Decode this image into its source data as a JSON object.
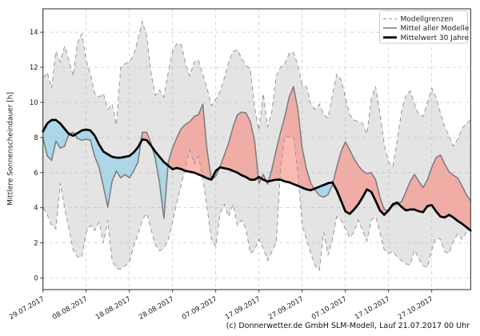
{
  "footer": "(c) Donnerwetter.de GmbH SLM-Modell, Lauf 21.07.2017 00 Uhr",
  "legend": {
    "items": [
      {
        "label": "Modellgrenzen",
        "style": "dashed-gray"
      },
      {
        "label": "Mittel aller Modelle",
        "style": "solid-gray"
      },
      {
        "label": "Mittelwert 30 Jahre",
        "style": "solid-black"
      }
    ]
  },
  "chart_data": {
    "type": "line",
    "title": "",
    "xlabel": "",
    "ylabel": "Mittlere Sonnenscheindauer [h]",
    "ylim": [
      0,
      14
    ],
    "yticks": [
      0,
      2,
      4,
      6,
      8,
      10,
      12,
      14
    ],
    "grid": "dashed both axes",
    "legend_position": "upper right",
    "x_unit": "days since 29.07.2017",
    "xtick_days": [
      0,
      10,
      20,
      30,
      40,
      50,
      60,
      70,
      80,
      90
    ],
    "xtick_labels": [
      "29.07.2017",
      "08.08.2017",
      "18.08.2017",
      "28.08.2017",
      "07.09.2017",
      "17.09.2017",
      "27.09.2017",
      "07.10.2017",
      "17.10.2017",
      "27.10.2017"
    ],
    "fill_rule": "red where Mittel aller Modelle above Mittelwert 30 Jahre, blue where below; gray band between Modellgrenzen",
    "colors": {
      "band_fill": "#e4e4e4",
      "band_edge": "#979797",
      "above_fill": "rgba(250,128,114,0.55)",
      "below_fill": "rgba(135,206,235,0.60)",
      "mean_line": "#7f7f7f",
      "clim_line": "#000000",
      "grid": "#bdbdbd",
      "text": "#1a1a1a"
    },
    "series": [
      {
        "name": "Modellgrenze oben",
        "role": "upper",
        "values": [
          11.4,
          11.7,
          10.8,
          12.9,
          12.3,
          13.2,
          12.4,
          11.5,
          13.4,
          13.9,
          12.4,
          11.6,
          10.5,
          10.3,
          10.5,
          9.6,
          9.9,
          8.7,
          12.0,
          12.2,
          12.3,
          12.7,
          13.6,
          14.6,
          13.8,
          11.7,
          10.4,
          10.7,
          10.3,
          11.7,
          12.9,
          13.35,
          13.3,
          12.2,
          11.5,
          12.3,
          12.4,
          11.6,
          10.8,
          9.8,
          10.2,
          10.6,
          11.4,
          12.3,
          12.9,
          13.0,
          12.5,
          12.1,
          11.9,
          9.7,
          8.4,
          10.5,
          8.6,
          9.5,
          11.5,
          12.0,
          12.2,
          12.8,
          12.85,
          12.1,
          11.0,
          10.9,
          9.9,
          9.6,
          9.9,
          9.3,
          9.1,
          10.4,
          11.6,
          11.3,
          10.3,
          9.3,
          9.0,
          8.9,
          8.8,
          8.2,
          10.2,
          10.9,
          9.4,
          7.6,
          6.6,
          6.35,
          7.8,
          9.5,
          10.4,
          10.65,
          9.9,
          9.3,
          9.2,
          10.0,
          10.8,
          10.3,
          9.4,
          8.6,
          8.1,
          7.5,
          7.9,
          8.5,
          8.8,
          9.0
        ]
      },
      {
        "name": "Modellgrenze unten",
        "role": "lower",
        "values": [
          4.0,
          3.6,
          3.0,
          2.8,
          5.4,
          4.0,
          2.8,
          1.6,
          1.2,
          1.2,
          2.6,
          3.0,
          2.7,
          3.2,
          2.0,
          3.3,
          1.0,
          0.55,
          0.5,
          0.7,
          0.9,
          1.8,
          2.5,
          3.3,
          3.7,
          2.8,
          1.9,
          1.55,
          1.7,
          2.2,
          3.2,
          4.3,
          5.3,
          6.35,
          7.3,
          6.5,
          6.95,
          5.7,
          4.0,
          2.2,
          1.8,
          3.7,
          4.2,
          3.5,
          4.2,
          3.0,
          3.3,
          2.8,
          1.4,
          1.6,
          2.2,
          1.7,
          1.0,
          1.5,
          2.0,
          6.2,
          8.1,
          8.0,
          8.0,
          6.0,
          3.0,
          2.2,
          1.4,
          0.7,
          0.45,
          2.6,
          1.3,
          2.2,
          3.5,
          3.3,
          2.8,
          2.3,
          2.6,
          3.3,
          2.7,
          2.1,
          3.3,
          3.5,
          2.6,
          1.6,
          1.4,
          1.5,
          1.2,
          1.0,
          0.8,
          0.75,
          1.6,
          1.1,
          0.7,
          0.6,
          1.6,
          2.3,
          2.2,
          1.5,
          1.4,
          2.1,
          2.5,
          2.2,
          2.6,
          2.8
        ]
      },
      {
        "name": "Mittel aller Modelle",
        "role": "mean",
        "values": [
          8.0,
          6.95,
          6.7,
          7.8,
          7.4,
          7.5,
          8.2,
          8.3,
          7.95,
          7.85,
          7.9,
          7.85,
          6.9,
          6.3,
          5.2,
          4.05,
          5.5,
          6.1,
          5.7,
          5.9,
          5.7,
          6.1,
          6.6,
          8.3,
          8.3,
          7.7,
          6.8,
          5.4,
          3.4,
          6.6,
          7.4,
          8.0,
          8.5,
          8.75,
          8.9,
          9.2,
          9.3,
          9.9,
          7.25,
          5.6,
          5.8,
          6.35,
          7.0,
          7.7,
          8.6,
          9.3,
          9.45,
          9.4,
          8.9,
          7.8,
          5.4,
          5.9,
          5.35,
          6.2,
          7.3,
          8.3,
          9.2,
          10.3,
          10.9,
          9.6,
          7.4,
          6.2,
          5.4,
          5.0,
          4.7,
          4.6,
          4.75,
          5.3,
          6.3,
          7.2,
          7.75,
          7.3,
          6.8,
          6.4,
          6.1,
          5.95,
          6.0,
          5.6,
          4.6,
          3.9,
          3.85,
          4.1,
          4.2,
          4.35,
          4.9,
          5.5,
          5.9,
          5.5,
          5.15,
          5.6,
          6.3,
          6.85,
          7.0,
          6.5,
          6.05,
          5.85,
          5.7,
          5.25,
          4.75,
          4.4
        ]
      },
      {
        "name": "Mittelwert 30 Jahre",
        "role": "clim",
        "values": [
          8.35,
          8.8,
          9.0,
          9.0,
          8.8,
          8.5,
          8.2,
          8.1,
          8.25,
          8.4,
          8.45,
          8.4,
          8.1,
          7.6,
          7.2,
          7.05,
          6.9,
          6.85,
          6.85,
          6.9,
          6.95,
          7.15,
          7.45,
          7.9,
          7.85,
          7.55,
          7.2,
          6.9,
          6.6,
          6.4,
          6.2,
          6.27,
          6.2,
          6.1,
          6.05,
          6.0,
          5.9,
          5.8,
          5.68,
          5.6,
          6.1,
          6.3,
          6.25,
          6.2,
          6.1,
          6.0,
          5.85,
          5.75,
          5.6,
          5.6,
          5.75,
          5.6,
          5.5,
          5.55,
          5.6,
          5.6,
          5.5,
          5.45,
          5.35,
          5.25,
          5.15,
          5.05,
          5.0,
          5.1,
          5.2,
          5.3,
          5.4,
          5.45,
          5.0,
          4.4,
          3.8,
          3.65,
          3.9,
          4.2,
          4.6,
          5.05,
          4.9,
          4.4,
          3.85,
          3.6,
          3.85,
          4.2,
          4.3,
          4.05,
          3.85,
          3.9,
          3.9,
          3.8,
          3.75,
          4.1,
          4.15,
          3.8,
          3.5,
          3.45,
          3.6,
          3.45,
          3.25,
          3.1,
          2.9,
          2.7
        ]
      }
    ]
  }
}
